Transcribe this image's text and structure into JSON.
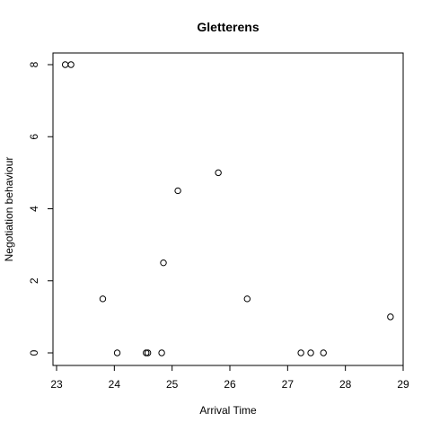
{
  "chart_data": {
    "type": "scatter",
    "title": "Gletterens",
    "xlabel": "Arrival Time",
    "ylabel": "Negotiation behaviour",
    "xlim": [
      23,
      29
    ],
    "ylim": [
      0,
      8
    ],
    "xticks": [
      "23",
      "24",
      "25",
      "26",
      "27",
      "28",
      "29"
    ],
    "yticks": [
      "0",
      "2",
      "4",
      "6",
      "8"
    ],
    "grid": false,
    "marker": "open-circle",
    "points": [
      {
        "x": 23.15,
        "y": 8
      },
      {
        "x": 23.25,
        "y": 8
      },
      {
        "x": 23.8,
        "y": 1.5
      },
      {
        "x": 24.05,
        "y": 0
      },
      {
        "x": 24.55,
        "y": 0
      },
      {
        "x": 24.58,
        "y": 0
      },
      {
        "x": 24.82,
        "y": 0
      },
      {
        "x": 24.85,
        "y": 2.5
      },
      {
        "x": 25.1,
        "y": 4.5
      },
      {
        "x": 25.8,
        "y": 5
      },
      {
        "x": 26.3,
        "y": 1.5
      },
      {
        "x": 27.23,
        "y": 0
      },
      {
        "x": 27.4,
        "y": 0
      },
      {
        "x": 27.62,
        "y": 0
      },
      {
        "x": 28.78,
        "y": 1
      }
    ]
  }
}
